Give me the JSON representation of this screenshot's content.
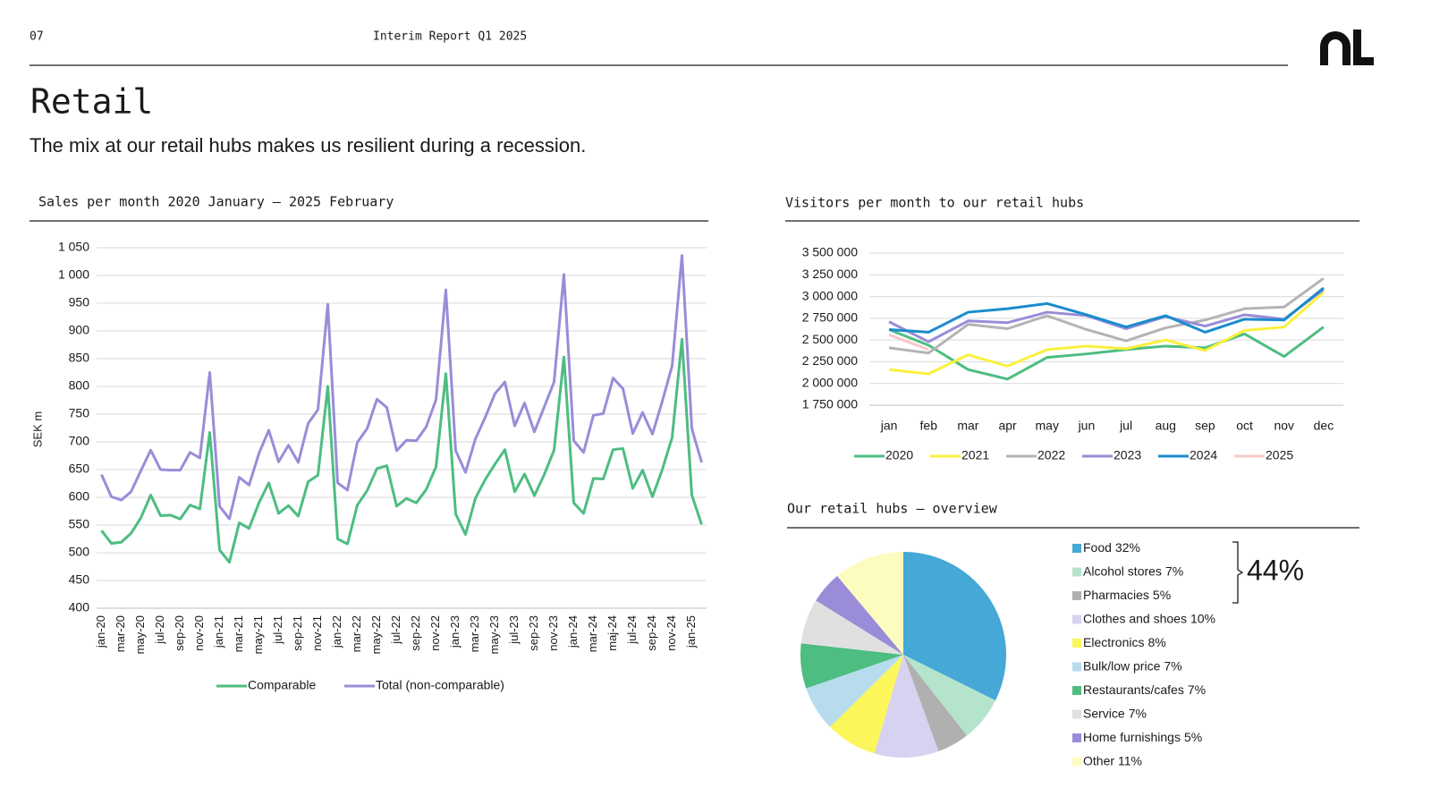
{
  "header": {
    "page": "07",
    "report": "Interim Report Q1 2025",
    "title": "Retail",
    "subtitle": "The mix at our retail hubs makes us resilient during a recession."
  },
  "chart_data": [
    {
      "type": "line",
      "title": "Sales per month 2020 January – 2025 February",
      "y_label": "SEK m",
      "categories": [
        "jan-20",
        null,
        "mar-20",
        null,
        "may-20",
        null,
        "jul-20",
        null,
        "sep-20",
        null,
        "nov-20",
        null,
        "jan-21",
        null,
        "mar-21",
        null,
        "may-21",
        null,
        "jul-21",
        null,
        "sep-21",
        null,
        "nov-21",
        null,
        "jan-22",
        null,
        "mar-22",
        null,
        "may-22",
        null,
        "jul-22",
        null,
        "sep-22",
        null,
        "nov-22",
        null,
        "jan-23",
        null,
        "mar-23",
        null,
        "may-23",
        null,
        "jul-23",
        null,
        "sep-23",
        null,
        "nov-23",
        null,
        "jan-24",
        null,
        "mar-24",
        null,
        "maj-24",
        null,
        "jul-24",
        null,
        "sep-24",
        null,
        "nov-24",
        null,
        "jan-25",
        null
      ],
      "series": [
        {
          "name": "Comparable",
          "color": "#4dbd82",
          "values": [
            540,
            517,
            519,
            535,
            563,
            604,
            567,
            568,
            561,
            586,
            579,
            717,
            505,
            483,
            554,
            544,
            590,
            626,
            571,
            585,
            566,
            628,
            640,
            800,
            525,
            516,
            586,
            612,
            652,
            657,
            584,
            598,
            590,
            614,
            655,
            823,
            570,
            533,
            598,
            632,
            660,
            686,
            610,
            642,
            603,
            641,
            685,
            853,
            590,
            571,
            634,
            633,
            686,
            688,
            616,
            649,
            601,
            650,
            708,
            885,
            604,
            551
          ]
        },
        {
          "name": "Total (non-comparable)",
          "color": "#9a8cd8",
          "values": [
            641,
            601,
            595,
            610,
            648,
            685,
            650,
            649,
            649,
            681,
            671,
            825,
            584,
            561,
            636,
            622,
            679,
            721,
            664,
            694,
            663,
            733,
            758,
            948,
            626,
            613,
            699,
            724,
            777,
            762,
            684,
            703,
            702,
            727,
            776,
            974,
            684,
            645,
            705,
            744,
            787,
            808,
            729,
            770,
            718,
            763,
            808,
            1002,
            702,
            681,
            748,
            751,
            815,
            796,
            715,
            753,
            714,
            773,
            837,
            1036,
            724,
            663
          ]
        }
      ],
      "ylim": [
        400,
        1050
      ],
      "yticks": [
        400,
        450,
        500,
        550,
        600,
        650,
        700,
        750,
        800,
        850,
        900,
        950,
        {
          "value": 1000,
          "label": "1 000"
        },
        {
          "value": 1050,
          "label": "1 050"
        }
      ],
      "grid": true,
      "legend": "bottom"
    },
    {
      "type": "line",
      "title": "Visitors per month to our retail hubs",
      "categories": [
        "jan",
        "feb",
        "mar",
        "apr",
        "may",
        "jun",
        "jul",
        "aug",
        "sep",
        "oct",
        "nov",
        "dec"
      ],
      "series": [
        {
          "name": "2020",
          "color": "#4dbd82",
          "values": [
            2620000,
            2440000,
            2160000,
            2050000,
            2300000,
            2340000,
            2390000,
            2430000,
            2410000,
            2570000,
            2310000,
            2650000
          ]
        },
        {
          "name": "2021",
          "color": "#fbf03c",
          "values": [
            2160000,
            2110000,
            2330000,
            2200000,
            2390000,
            2430000,
            2400000,
            2500000,
            2380000,
            2610000,
            2650000,
            3050000
          ]
        },
        {
          "name": "2022",
          "color": "#b4b4b4",
          "values": [
            2410000,
            2350000,
            2680000,
            2630000,
            2780000,
            2620000,
            2490000,
            2640000,
            2730000,
            2860000,
            2880000,
            3210000
          ]
        },
        {
          "name": "2023",
          "color": "#9a8cd8",
          "values": [
            2710000,
            2480000,
            2720000,
            2700000,
            2820000,
            2780000,
            2630000,
            2770000,
            2660000,
            2790000,
            2740000,
            3080000
          ]
        },
        {
          "name": "2024",
          "color": "#1a8ccc",
          "values": [
            2620000,
            2590000,
            2820000,
            2860000,
            2920000,
            2790000,
            2650000,
            2780000,
            2590000,
            2740000,
            2730000,
            3100000
          ]
        },
        {
          "name": "2025",
          "color": "#f7c8c8",
          "values": [
            2560000,
            2390000,
            null,
            null,
            null,
            null,
            null,
            null,
            null,
            null,
            null,
            null
          ]
        }
      ],
      "ylim": [
        1750000,
        3500000
      ],
      "yticks": [
        {
          "value": 1750000,
          "label": "1 750 000"
        },
        {
          "value": 2000000,
          "label": "2 000 000"
        },
        {
          "value": 2250000,
          "label": "2 250 000"
        },
        {
          "value": 2500000,
          "label": "2 500 000"
        },
        {
          "value": 2750000,
          "label": "2 750 000"
        },
        {
          "value": 3000000,
          "label": "3 000 000"
        },
        {
          "value": 3250000,
          "label": "3 250 000"
        },
        {
          "value": 3500000,
          "label": "3 500 000"
        }
      ],
      "grid": true,
      "legend": "bottom"
    },
    {
      "type": "pie",
      "title": "Our retail hubs – overview",
      "categories": [
        "Food",
        "Alcohol stores",
        "Pharmacies",
        "Clothes and shoes",
        "Electronics",
        "Bulk/low price",
        "Restaurants/cafes",
        "Service",
        "Home furnishings",
        "Other"
      ],
      "values": [
        32,
        7,
        5,
        10,
        8,
        7,
        7,
        7,
        5,
        11
      ],
      "value_labels": [
        "32%",
        "7%",
        "5%",
        "10%",
        "8%",
        "7%",
        "7%",
        "7%",
        "5%",
        "11%"
      ],
      "colors": [
        "#45a8d6",
        "#b5e4cc",
        "#b0b0b0",
        "#d6d2f0",
        "#fbf75a",
        "#b7dcee",
        "#4dbd82",
        "#e0e0e0",
        "#9a8cd8",
        "#fdfcc0"
      ],
      "annotation": "44%",
      "legend": "right"
    }
  ]
}
